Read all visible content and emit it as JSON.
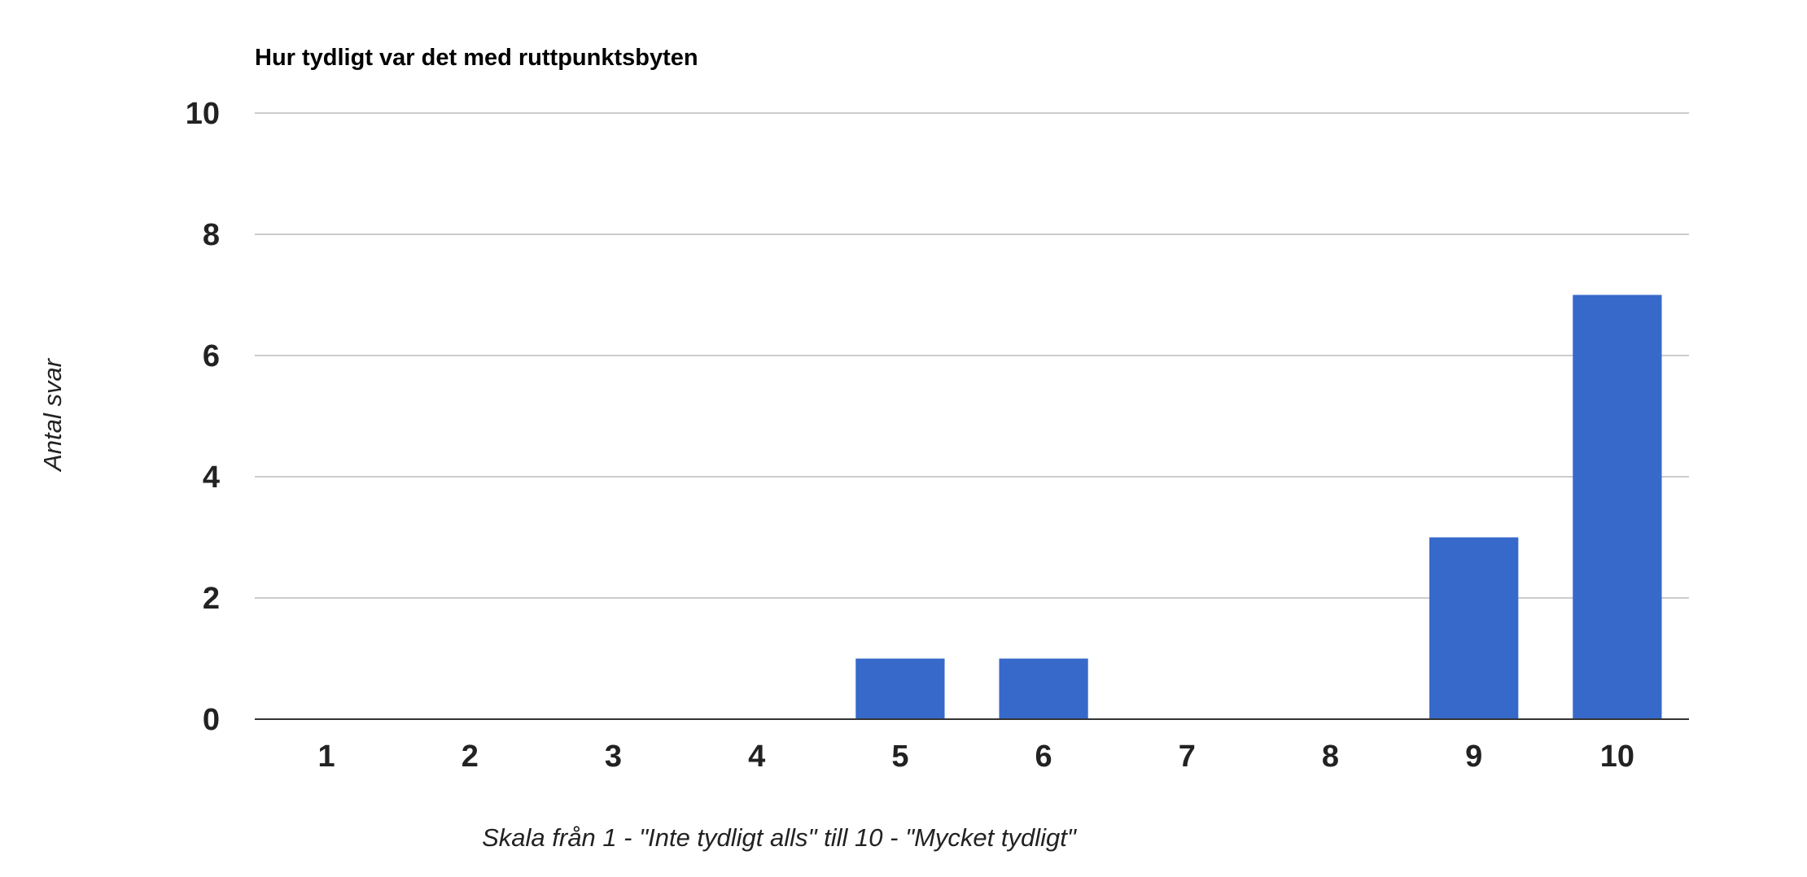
{
  "chart_data": {
    "type": "bar",
    "title": "Hur tydligt var det med ruttpunktsbyten",
    "xlabel": "Skala från 1 - \"Inte tydligt alls\" till 10 - \"Mycket tydligt\"",
    "ylabel": "Antal svar",
    "categories": [
      "1",
      "2",
      "3",
      "4",
      "5",
      "6",
      "7",
      "8",
      "9",
      "10"
    ],
    "values": [
      0,
      0,
      0,
      0,
      1,
      1,
      0,
      0,
      3,
      7
    ],
    "ylim": [
      0,
      10
    ],
    "yticks": [
      "0",
      "2",
      "4",
      "6",
      "8",
      "10"
    ],
    "grid": true,
    "legend": "none",
    "bar_color": "#3669c9"
  }
}
